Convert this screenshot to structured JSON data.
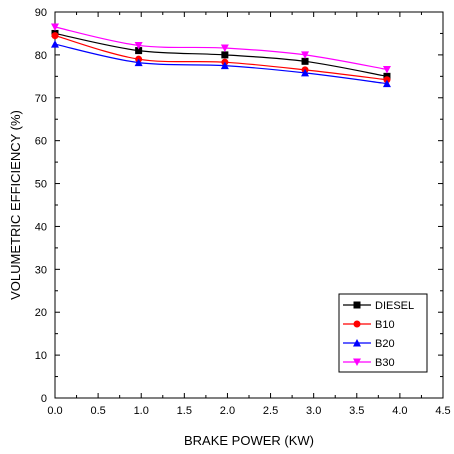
{
  "chart_data": {
    "type": "line",
    "xlabel": "BRAKE POWER (KW)",
    "ylabel": "VOLUMETRIC EFFICIENCY (%)",
    "xlim": [
      0.0,
      4.5
    ],
    "ylim": [
      0,
      90
    ],
    "x_ticks": [
      "0.0",
      "0.5",
      "1.0",
      "1.5",
      "2.0",
      "2.5",
      "3.0",
      "3.5",
      "4.0",
      "4.5"
    ],
    "y_ticks": [
      "0",
      "10",
      "20",
      "30",
      "40",
      "50",
      "60",
      "70",
      "80",
      "90"
    ],
    "grid": false,
    "legend_position": "bottom-right",
    "x": [
      0.0,
      0.97,
      1.97,
      2.9,
      3.85
    ],
    "series": [
      {
        "name": "DIESEL",
        "values": [
          85.0,
          81.0,
          80.0,
          78.5,
          75.0
        ],
        "color": "#000000",
        "marker": "square"
      },
      {
        "name": "B10",
        "values": [
          84.5,
          79.0,
          78.3,
          76.5,
          74.2
        ],
        "color": "#ff0000",
        "marker": "circle"
      },
      {
        "name": "B20",
        "values": [
          82.5,
          78.2,
          77.5,
          75.8,
          73.3
        ],
        "color": "#0000ff",
        "marker": "triangle-up"
      },
      {
        "name": "B30",
        "values": [
          86.5,
          82.2,
          81.6,
          80.0,
          76.6
        ],
        "color": "#ff00ff",
        "marker": "triangle-down"
      }
    ]
  }
}
